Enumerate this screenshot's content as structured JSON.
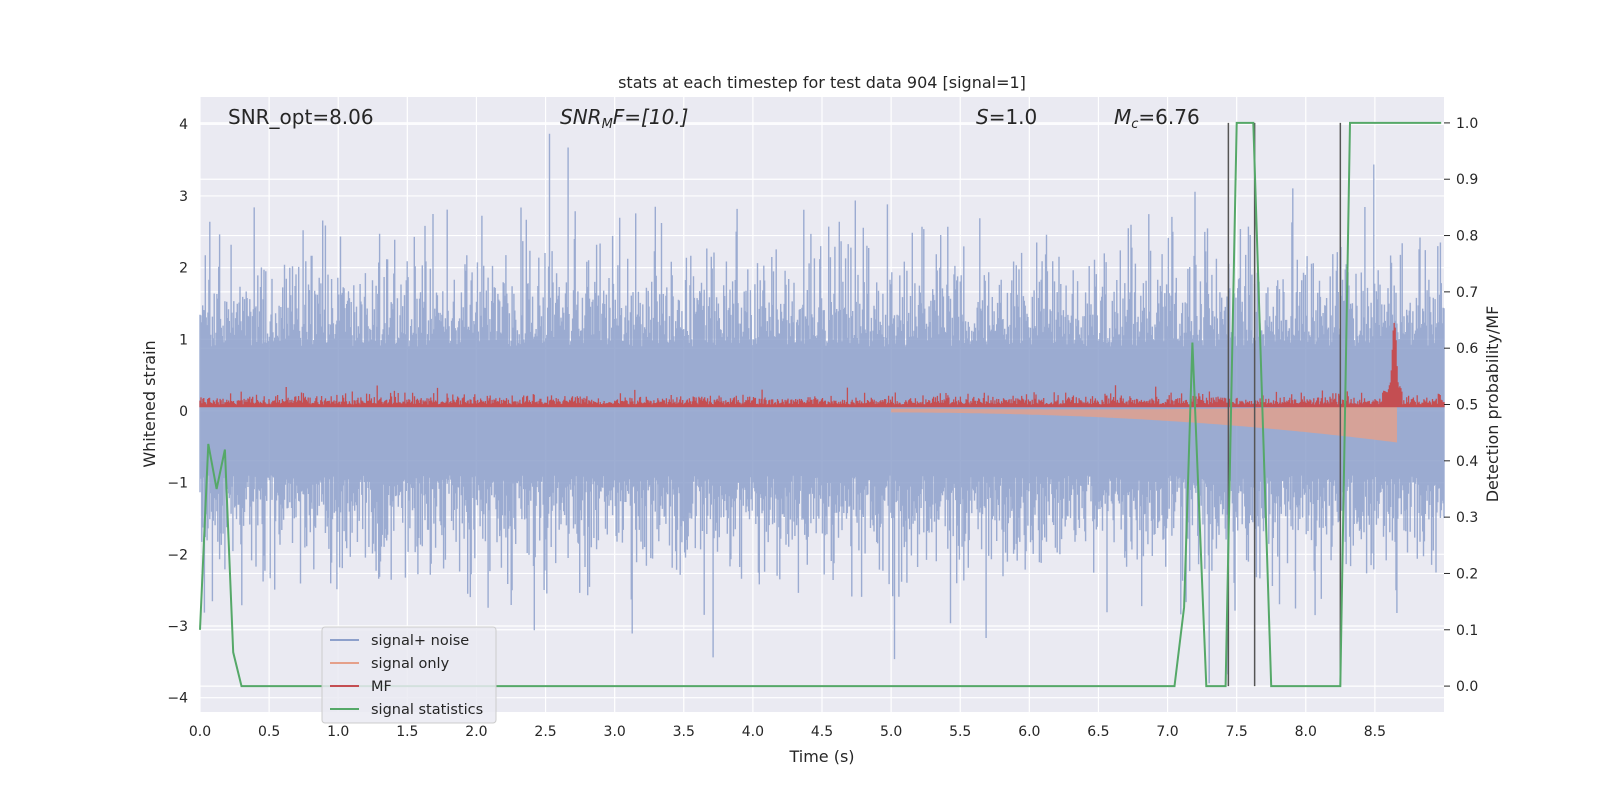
{
  "chart_data": {
    "type": "line",
    "title": "stats at each timestep for test data 904 [signal=1]",
    "xlabel": "Time (s)",
    "ylabel": "Whitened strain",
    "y2label": "Detection probability/MF",
    "xlim": [
      0.0,
      9.0
    ],
    "ylim": [
      -4.2,
      4.38
    ],
    "y2lim": [
      -0.046,
      1.046
    ],
    "x_ticks": [
      "0.0",
      "0.5",
      "1.0",
      "1.5",
      "2.0",
      "2.5",
      "3.0",
      "3.5",
      "4.0",
      "4.5",
      "5.0",
      "5.5",
      "6.0",
      "6.5",
      "7.0",
      "7.5",
      "8.0",
      "8.5"
    ],
    "x_tick_values": [
      0.0,
      0.5,
      1.0,
      1.5,
      2.0,
      2.5,
      3.0,
      3.5,
      4.0,
      4.5,
      5.0,
      5.5,
      6.0,
      6.5,
      7.0,
      7.5,
      8.0,
      8.5
    ],
    "y_ticks": [
      "−4",
      "−3",
      "−2",
      "−1",
      "0",
      "1",
      "2",
      "3",
      "4"
    ],
    "y_tick_values": [
      -4,
      -3,
      -2,
      -1,
      0,
      1,
      2,
      3,
      4
    ],
    "y2_ticks": [
      "0.0",
      "0.1",
      "0.2",
      "0.3",
      "0.4",
      "0.5",
      "0.6",
      "0.7",
      "0.8",
      "0.9",
      "1.0"
    ],
    "y2_tick_values": [
      0.0,
      0.1,
      0.2,
      0.3,
      0.4,
      0.5,
      0.6,
      0.7,
      0.8,
      0.9,
      1.0
    ],
    "grid": true,
    "legend_position": "lower-left",
    "annotations": {
      "snr_opt": "SNR_opt=8.06",
      "snr_mf_sym": "SNR",
      "snr_mf_sub": "M",
      "snr_mf_rest": "F=[10.]",
      "s_sym": "S",
      "s_rest": "=1.0",
      "mc_sym": "M",
      "mc_sub": "c",
      "mc_rest": "=6.76"
    },
    "series": [
      {
        "name": "signal+ noise",
        "color": "#8da0cb",
        "axis": "left",
        "style": "dense noise, envelope approx ±1.5 with spikes to ±4"
      },
      {
        "name": "signal only",
        "color": "#e5a08a",
        "axis": "left",
        "style": "chirp growing from ~5.0 s to merger at ~8.65 s"
      },
      {
        "name": "MF",
        "color": "#c44e52",
        "axis": "right"
      },
      {
        "name": "signal statistics",
        "color": "#55a868",
        "axis": "right",
        "x": [
          0.0,
          0.06,
          0.12,
          0.18,
          0.24,
          0.3,
          7.05,
          7.12,
          7.18,
          7.28,
          7.42,
          7.5,
          7.62,
          7.75,
          8.25,
          8.32,
          8.98
        ],
        "y": [
          0.1,
          0.43,
          0.35,
          0.42,
          0.06,
          0.0,
          0.0,
          0.14,
          0.61,
          0.0,
          0.0,
          1.0,
          1.0,
          0.0,
          0.0,
          1.0,
          1.0
        ]
      }
    ],
    "vertical_markers": [
      7.44,
      7.63,
      8.25
    ],
    "colors": {
      "background": "#eaeaf2",
      "grid": "#ffffff",
      "marker": "#555555"
    }
  }
}
